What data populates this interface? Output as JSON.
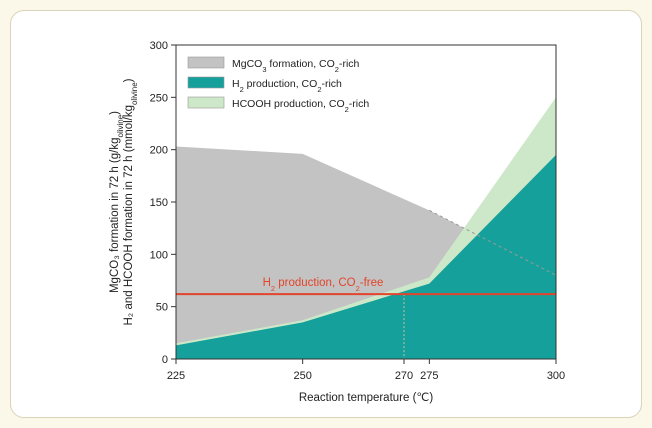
{
  "chart_data": {
    "type": "area",
    "xlabel": "Reaction temperature (℃)",
    "ylabel_line1": "MgCO₃ formation in 72 h (g/kg",
    "ylabel_line1_sub": "olivine",
    "ylabel_line1_end": ")",
    "ylabel_line2": "H₂ and HCOOH formation in 72 h (mmol/kg",
    "ylabel_line2_sub": "olivine",
    "ylabel_line2_end": ")",
    "xlim": [
      225,
      300
    ],
    "ylim": [
      0,
      300
    ],
    "xticks": [
      {
        "value": 225,
        "label": "225",
        "highlight": false
      },
      {
        "value": 250,
        "label": "250",
        "highlight": false
      },
      {
        "value": 270,
        "label": "270",
        "highlight": true
      },
      {
        "value": 275,
        "label": "275",
        "highlight": false
      },
      {
        "value": 300,
        "label": "300",
        "highlight": false
      }
    ],
    "yticks": [
      0,
      50,
      100,
      150,
      200,
      250,
      300
    ],
    "series": [
      {
        "name": "MgCO₃ formation, CO₂-rich",
        "legend_parts": [
          "MgCO",
          "3",
          " formation, CO",
          "2",
          "-rich"
        ],
        "color": "#c3c3c3",
        "x": [
          225,
          250,
          275,
          300
        ],
        "values": [
          203,
          196,
          142,
          80
        ]
      },
      {
        "name": "HCOOH production, CO₂-rich",
        "legend_parts": [
          "HCOOH production, CO",
          "2",
          "-rich"
        ],
        "color": "#cde8c8",
        "x": [
          225,
          250,
          275,
          300
        ],
        "values": [
          15,
          37,
          78,
          250
        ]
      },
      {
        "name": "H₂ production, CO₂-rich",
        "legend_parts": [
          "H",
          "2",
          " production, CO",
          "2",
          "-rich"
        ],
        "color": "#16a09c",
        "x": [
          225,
          250,
          275,
          300
        ],
        "values": [
          13,
          35,
          72,
          195
        ]
      }
    ],
    "reference_line": {
      "value": 62,
      "color": "#e2452b",
      "label_parts": [
        "H",
        "2",
        " production, CO",
        "2",
        "-free"
      ]
    },
    "intersection_x": 270,
    "highlight_color": "#e58a2c",
    "legend_position": "top-left"
  }
}
